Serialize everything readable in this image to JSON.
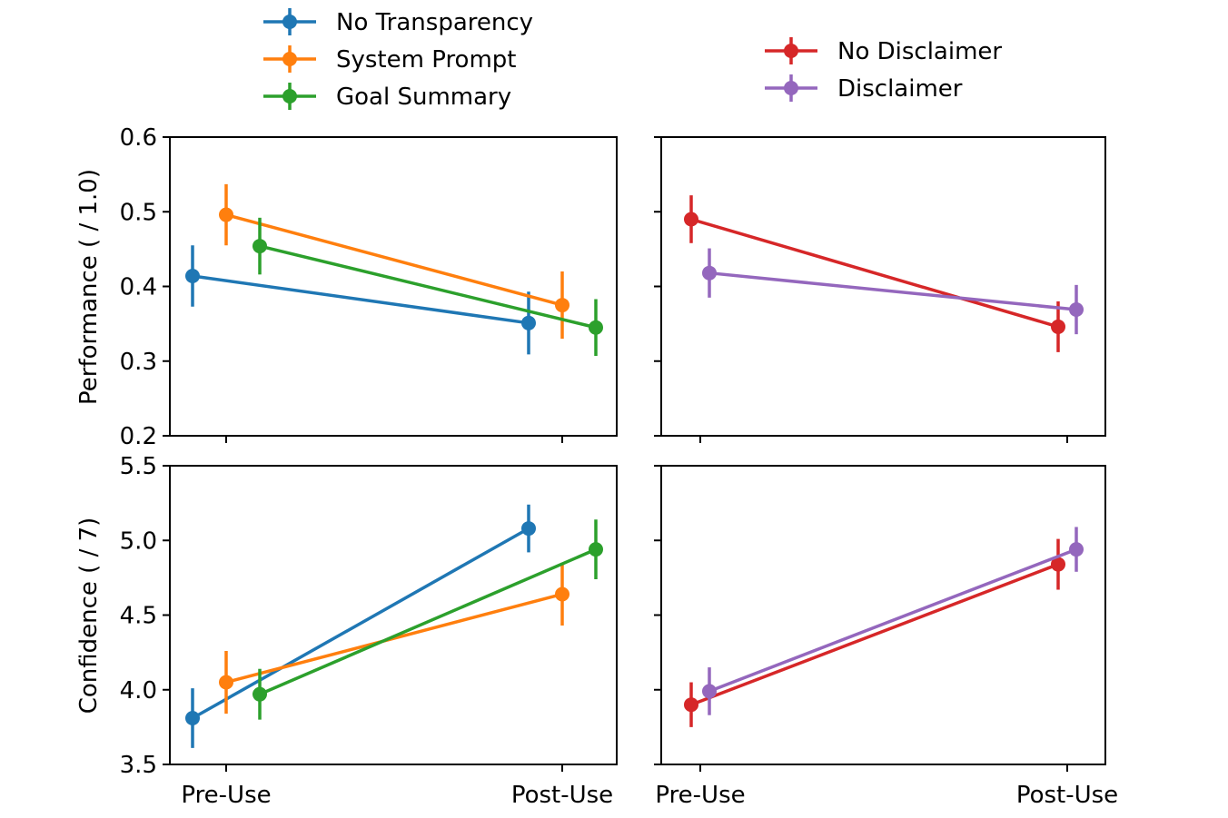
{
  "chart_data": [
    {
      "type": "line",
      "panel": "top-left",
      "categories": [
        "Pre-Use",
        "Post-Use"
      ],
      "ylabel": "Performance ( / 1.0)",
      "ylim": [
        0.2,
        0.6
      ],
      "yticks": [
        "0.2",
        "0.3",
        "0.4",
        "0.5",
        "0.6"
      ],
      "show_x_tick_labels": false,
      "series": [
        {
          "name": "No Transparency",
          "color": "#1f77b4",
          "values": [
            0.414,
            0.351
          ],
          "errors": [
            0.041,
            0.042
          ]
        },
        {
          "name": "System Prompt",
          "color": "#ff7f0e",
          "values": [
            0.496,
            0.375
          ],
          "errors": [
            0.041,
            0.045
          ]
        },
        {
          "name": "Goal Summary",
          "color": "#2ca02c",
          "values": [
            0.454,
            0.345
          ],
          "errors": [
            0.038,
            0.038
          ]
        }
      ]
    },
    {
      "type": "line",
      "panel": "top-right",
      "categories": [
        "Pre-Use",
        "Post-Use"
      ],
      "ylim": [
        0.2,
        0.6
      ],
      "show_x_tick_labels": false,
      "series": [
        {
          "name": "No Disclaimer",
          "color": "#d62728",
          "values": [
            0.49,
            0.346
          ],
          "errors": [
            0.032,
            0.034
          ]
        },
        {
          "name": "Disclaimer",
          "color": "#9467bd",
          "values": [
            0.418,
            0.369
          ],
          "errors": [
            0.033,
            0.033
          ]
        }
      ]
    },
    {
      "type": "line",
      "panel": "bottom-left",
      "categories": [
        "Pre-Use",
        "Post-Use"
      ],
      "ylabel": "Confidence ( / 7)",
      "ylim": [
        3.5,
        5.5
      ],
      "yticks": [
        "3.5",
        "4.0",
        "4.5",
        "5.0",
        "5.5"
      ],
      "show_x_tick_labels": true,
      "series": [
        {
          "name": "No Transparency",
          "color": "#1f77b4",
          "values": [
            3.81,
            5.08
          ],
          "errors": [
            0.2,
            0.16
          ]
        },
        {
          "name": "System Prompt",
          "color": "#ff7f0e",
          "values": [
            4.05,
            4.64
          ],
          "errors": [
            0.21,
            0.21
          ]
        },
        {
          "name": "Goal Summary",
          "color": "#2ca02c",
          "values": [
            3.97,
            4.94
          ],
          "errors": [
            0.17,
            0.2
          ]
        }
      ]
    },
    {
      "type": "line",
      "panel": "bottom-right",
      "categories": [
        "Pre-Use",
        "Post-Use"
      ],
      "ylim": [
        3.5,
        5.5
      ],
      "show_x_tick_labels": true,
      "series": [
        {
          "name": "No Disclaimer",
          "color": "#d62728",
          "values": [
            3.9,
            4.84
          ],
          "errors": [
            0.15,
            0.17
          ]
        },
        {
          "name": "Disclaimer",
          "color": "#9467bd",
          "values": [
            3.99,
            4.94
          ],
          "errors": [
            0.16,
            0.15
          ]
        }
      ]
    }
  ],
  "legends": [
    {
      "placement": "top-left",
      "entries": [
        {
          "label": "No Transparency",
          "color": "#1f77b4"
        },
        {
          "label": "System Prompt",
          "color": "#ff7f0e"
        },
        {
          "label": "Goal Summary",
          "color": "#2ca02c"
        }
      ]
    },
    {
      "placement": "top-right",
      "entries": [
        {
          "label": "No Disclaimer",
          "color": "#d62728"
        },
        {
          "label": "Disclaimer",
          "color": "#9467bd"
        }
      ]
    }
  ]
}
